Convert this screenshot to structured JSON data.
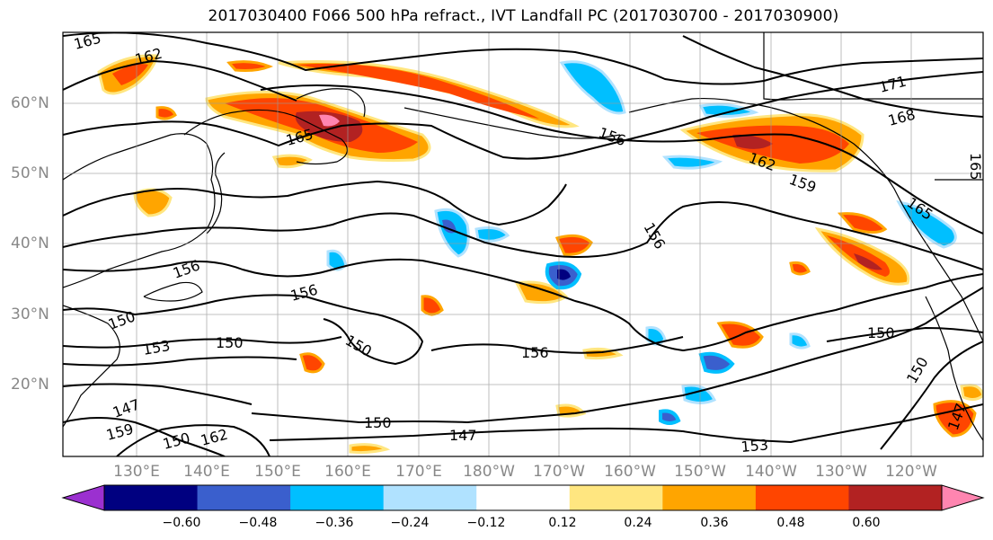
{
  "title": "2017030400 F066 500 hPa refract., IVT Landfall PC (2017030700 - 2017030900)",
  "lat_labels": [
    "60°N",
    "50°N",
    "40°N",
    "30°N",
    "20°N"
  ],
  "lon_labels": [
    "130°E",
    "140°E",
    "150°E",
    "160°E",
    "170°E",
    "180°W",
    "170°W",
    "160°W",
    "150°W",
    "140°W",
    "130°W",
    "120°W"
  ],
  "contour_labels": [
    "165",
    "162",
    "165",
    "156",
    "156",
    "150",
    "153",
    "150",
    "150",
    "156",
    "156",
    "147",
    "150",
    "159",
    "162",
    "147",
    "150",
    "156",
    "162",
    "159",
    "165",
    "171",
    "168",
    "150",
    "150",
    "153",
    "147",
    "165"
  ],
  "colorbar": {
    "ticks": [
      "−0.60",
      "−0.48",
      "−0.36",
      "−0.24",
      "−0.12",
      "0.12",
      "0.24",
      "0.36",
      "0.48",
      "0.60"
    ],
    "colors": [
      "#9b30d0",
      "#000080",
      "#3a5fcd",
      "#00bfff",
      "#b0e2ff",
      "#ffffff",
      "#ffe680",
      "#ffa500",
      "#ff4500",
      "#b22222",
      "#ff85b0"
    ]
  },
  "colors": {
    "positive_strong": "#b22222",
    "positive_mid": "#ff4500",
    "positive_low": "#ffa500",
    "positive_weak": "#ffe680",
    "negative_weak": "#b0e2ff",
    "negative_low": "#00bfff",
    "negative_mid": "#3a5fcd",
    "negative_strong": "#000080"
  }
}
